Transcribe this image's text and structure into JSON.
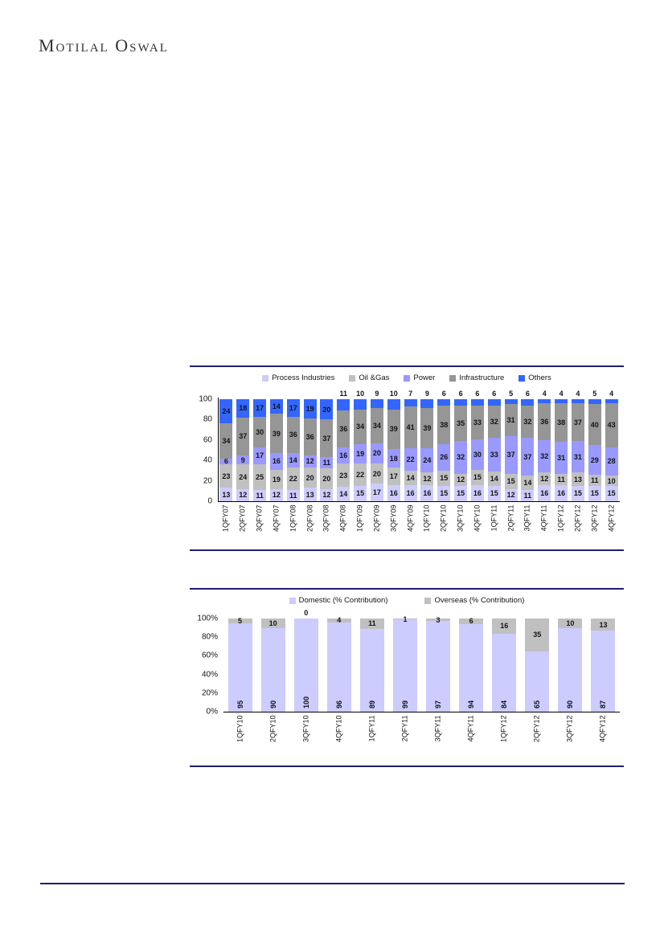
{
  "page": {
    "logo_text": "Motilal Oswal"
  },
  "colors": {
    "divider_navy": "#1f1f70",
    "axis_black": "#000000",
    "process_industries": "#CCCCFF",
    "oil_gas": "#C0C0C0",
    "power": "#9999FF",
    "infrastructure": "#969696",
    "others": "#3366FF",
    "domestic": "#CCCCFF",
    "overseas": "#C0C0C0"
  },
  "chart_data": [
    {
      "type": "bar",
      "stacked": true,
      "title": "",
      "legend_position": "top",
      "grid": false,
      "ylim": [
        0,
        100
      ],
      "y_ticks": [
        "100",
        "80",
        "60",
        "40",
        "20",
        "0"
      ],
      "categories": [
        "1QFY07",
        "2QFY07",
        "3QFY07",
        "4QFY07",
        "1QFY08",
        "2QFY08",
        "3QFY08",
        "4QFY08",
        "1QFY09",
        "2QFY09",
        "3QFY09",
        "4QFY09",
        "1QFY10",
        "2QFY10",
        "3QFY10",
        "4QFY10",
        "1QFY11",
        "2QFY11",
        "3QFY11",
        "4QFY11",
        "1QFY12",
        "2QFY12",
        "3QFY12",
        "4QFY12"
      ],
      "series": [
        {
          "name": "Process Industries",
          "color": "#CCCCFF",
          "values": [
            13,
            12,
            11,
            12,
            11,
            13,
            12,
            14,
            15,
            17,
            16,
            16,
            16,
            15,
            15,
            16,
            15,
            12,
            11,
            16,
            16,
            15,
            15,
            15
          ]
        },
        {
          "name": "Oil &Gas",
          "color": "#C0C0C0",
          "values": [
            23,
            24,
            25,
            19,
            22,
            20,
            20,
            23,
            22,
            20,
            17,
            14,
            12,
            15,
            12,
            15,
            14,
            15,
            14,
            12,
            11,
            13,
            11,
            10
          ]
        },
        {
          "name": "Power",
          "color": "#9999FF",
          "values": [
            6,
            9,
            17,
            16,
            14,
            12,
            11,
            16,
            19,
            20,
            18,
            22,
            24,
            26,
            32,
            30,
            33,
            37,
            37,
            32,
            31,
            31,
            29,
            28
          ]
        },
        {
          "name": "Infrastructure",
          "color": "#969696",
          "values": [
            34,
            37,
            30,
            39,
            36,
            36,
            37,
            36,
            34,
            34,
            39,
            41,
            39,
            38,
            35,
            33,
            32,
            31,
            32,
            36,
            38,
            37,
            40,
            43
          ]
        },
        {
          "name": "Others",
          "color": "#3366FF",
          "values": [
            24,
            18,
            17,
            14,
            17,
            19,
            20,
            11,
            10,
            9,
            10,
            7,
            9,
            6,
            6,
            6,
            6,
            5,
            6,
            4,
            4,
            4,
            5,
            4
          ]
        }
      ]
    },
    {
      "type": "bar",
      "stacked": true,
      "title": "",
      "legend_position": "top",
      "grid": false,
      "ylim": [
        0,
        100
      ],
      "y_ticks": [
        "100%",
        "80%",
        "60%",
        "40%",
        "20%",
        "0%"
      ],
      "categories": [
        "1QFY10",
        "2QFY10",
        "3QFY10",
        "4QFY10",
        "1QFY11",
        "2QFY11",
        "3QFY11",
        "4QFY11",
        "1QFY12",
        "2QFY12",
        "3QFY12",
        "4QFY12"
      ],
      "series": [
        {
          "name": "Domestic (% Contribution)",
          "color": "#CCCCFF",
          "values": [
            95,
            90,
            100,
            96,
            89,
            99,
            97,
            94,
            84,
            65,
            90,
            87
          ]
        },
        {
          "name": "Overseas (% Contribution)",
          "color": "#C0C0C0",
          "values": [
            5,
            10,
            0,
            4,
            11,
            1,
            3,
            6,
            16,
            35,
            10,
            13
          ]
        }
      ]
    }
  ]
}
